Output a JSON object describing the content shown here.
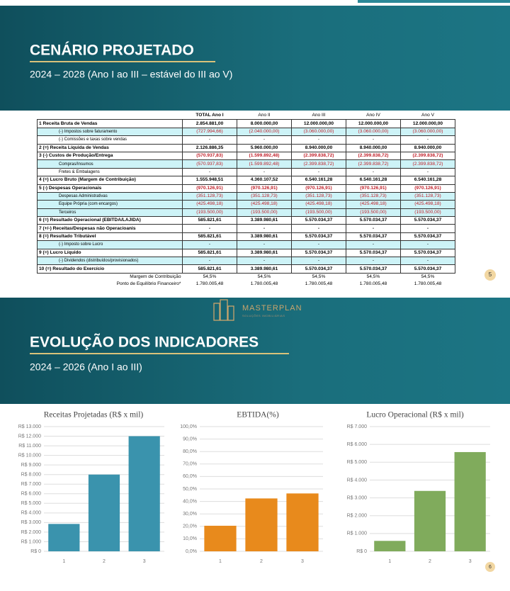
{
  "slide1": {
    "title": "CENÁRIO PROJETADO",
    "subtitle": "2024 – 2028 (Ano I ao III – estável do III ao V)",
    "page_number": "5",
    "table": {
      "columns": [
        "TOTAL Ano I",
        "Ano II",
        "Ano III",
        "Ano IV",
        "Ano V"
      ],
      "rows": [
        [
          "1 Receita Bruta de Vendas",
          "2.854.881,00",
          "8.000.000,00",
          "12.000.000,00",
          "12.000.000,00",
          "12.000.000,00"
        ],
        [
          "(-) Impostos sobre faturamento",
          "(727.994,66)",
          "(2.040.000,00)",
          "(3.060.000,00)",
          "(3.060.000,00)",
          "(3.060.000,00)"
        ],
        [
          "(-) Comissões e taxas sobre vendas",
          "-",
          "-",
          "-",
          "-",
          "-"
        ],
        [
          "2 (=) Receita Líquida de Vendas",
          "2.126.886,35",
          "5.960.000,00",
          "8.940.000,00",
          "8.940.000,00",
          "8.940.000,00"
        ],
        [
          "3 (-) Custos de Produção/Entrega",
          "(570.937,83)",
          "(1.599.892,48)",
          "(2.399.838,72)",
          "(2.399.838,72)",
          "(2.399.838,72)"
        ],
        [
          "Compras/Insumos",
          "(570.937,83)",
          "(1.599.892,48)",
          "(2.399.838,72)",
          "(2.399.838,72)",
          "(2.399.838,72)"
        ],
        [
          "Fretes & Embalagens",
          "-",
          "-",
          "-",
          "-",
          "-"
        ],
        [
          "4 (=) Lucro Bruto (Margem de Contribuição)",
          "1.555.948,51",
          "4.360.107,52",
          "6.540.161,28",
          "6.540.161,28",
          "6.540.161,28"
        ],
        [
          "5 (-) Despesas Operacionais",
          "(970.126,91)",
          "(970.126,91)",
          "(970.126,91)",
          "(970.126,91)",
          "(970.126,91)"
        ],
        [
          "Despesas Administrativas",
          "(351.128,73)",
          "(351.128,73)",
          "(351.128,73)",
          "(351.128,73)",
          "(351.128,73)"
        ],
        [
          "Equipe Própria (com encargos)",
          "(425.498,18)",
          "(425.498,18)",
          "(425.498,18)",
          "(425.498,18)",
          "(425.498,18)"
        ],
        [
          "Terceiros",
          "(193.500,00)",
          "(193.500,00)",
          "(193.500,00)",
          "(193.500,00)",
          "(193.500,00)"
        ],
        [
          "6 (=) Resultado Operacional (EBITDA/LAJIDA)",
          "585.821,61",
          "3.389.980,61",
          "5.570.034,37",
          "5.570.034,37",
          "5.570.034,37"
        ],
        [
          "7 (+/-) Receitas/Despesas não Operacioanis",
          "-",
          "-",
          "-",
          "-",
          "-"
        ],
        [
          "8 (=) Resultado Tributável",
          "585.821,61",
          "3.389.980,61",
          "5.570.034,37",
          "5.570.034,37",
          "5.570.034,37"
        ],
        [
          "(-) Imposto sobre Lucro",
          "-",
          "-",
          "-",
          "-",
          "-"
        ],
        [
          "9 (=) Lucro Líquido",
          "585.821,61",
          "3.389.980,61",
          "5.570.034,37",
          "5.570.034,37",
          "5.570.034,37"
        ],
        [
          "(-) Dividendos (distribuídos/provisionados)",
          "-",
          "-",
          "-",
          "-",
          "-"
        ],
        [
          "10 (=) Resultado do Exercício",
          "585.821,61",
          "3.389.980,61",
          "5.570.034,37",
          "5.570.034,37",
          "5.570.034,37"
        ]
      ],
      "footer_rows": [
        [
          "Margem de Contribuição",
          "54,5%",
          "54,5%",
          "54,5%",
          "54,5%",
          "54,5%"
        ],
        [
          "Ponto de Equilíbrio Financeiro*",
          "1.780.005,48",
          "1.780.005,48",
          "1.780.005,48",
          "1.780.005,48",
          "1.780.005,48"
        ]
      ]
    }
  },
  "logo": {
    "name": "MASTERPLAN",
    "tagline": "SOLUÇÕES IMOBILIÁRIAS"
  },
  "slide2": {
    "title": "EVOLUÇÃO DOS INDICADORES",
    "subtitle": "2024 – 2026 (Ano I ao III)",
    "page_number": "6"
  },
  "chart_data": [
    {
      "type": "bar",
      "title": "Receitas Projetadas (R$ x mil)",
      "categories": [
        "1",
        "2",
        "3"
      ],
      "values": [
        2854.881,
        8000,
        12000
      ],
      "color": "#3a93ad",
      "ylim": [
        0,
        13000
      ],
      "grid": true,
      "yticks": [
        {
          "value": 0,
          "label": "R$ 0"
        },
        {
          "value": 1000,
          "label": "R$ 1.000"
        },
        {
          "value": 2000,
          "label": "R$ 2.000"
        },
        {
          "value": 3000,
          "label": "R$ 3.000"
        },
        {
          "value": 4000,
          "label": "R$ 4.000"
        },
        {
          "value": 5000,
          "label": "R$ 5.000"
        },
        {
          "value": 6000,
          "label": "R$ 6.000"
        },
        {
          "value": 7000,
          "label": "R$ 7.000"
        },
        {
          "value": 8000,
          "label": "R$ 8.000"
        },
        {
          "value": 9000,
          "label": "R$ 9.000"
        },
        {
          "value": 10000,
          "label": "R$ 10.000"
        },
        {
          "value": 11000,
          "label": "R$ 11.000"
        },
        {
          "value": 12000,
          "label": "R$ 12.000"
        },
        {
          "value": 13000,
          "label": "R$ 13.000"
        }
      ]
    },
    {
      "type": "bar",
      "title": "EBTIDA(%)",
      "categories": [
        "1",
        "2",
        "3"
      ],
      "values": [
        20.5,
        42.4,
        46.4
      ],
      "color": "#e88a1c",
      "ylim": [
        0,
        100
      ],
      "grid": true,
      "yticks": [
        {
          "value": 0,
          "label": "0,0%"
        },
        {
          "value": 10,
          "label": "10,0%"
        },
        {
          "value": 20,
          "label": "20,0%"
        },
        {
          "value": 30,
          "label": "30,0%"
        },
        {
          "value": 40,
          "label": "40,0%"
        },
        {
          "value": 50,
          "label": "50,0%"
        },
        {
          "value": 60,
          "label": "60,0%"
        },
        {
          "value": 70,
          "label": "70,0%"
        },
        {
          "value": 80,
          "label": "80,0%"
        },
        {
          "value": 90,
          "label": "90,0%"
        },
        {
          "value": 100,
          "label": "100,0%"
        }
      ]
    },
    {
      "type": "bar",
      "title": "Lucro Operacional (R$ x mil)",
      "categories": [
        "1",
        "2",
        "3"
      ],
      "values": [
        585.8,
        3390,
        5570
      ],
      "color": "#80ab5c",
      "ylim": [
        0,
        7000
      ],
      "grid": true,
      "yticks": [
        {
          "value": 0,
          "label": "R$ 0"
        },
        {
          "value": 1000,
          "label": "R$ 1.000"
        },
        {
          "value": 2000,
          "label": "R$ 2.000"
        },
        {
          "value": 3000,
          "label": "R$ 3.000"
        },
        {
          "value": 4000,
          "label": "R$ 4.000"
        },
        {
          "value": 5000,
          "label": "R$ 5.000"
        },
        {
          "value": 6000,
          "label": "R$ 6.000"
        },
        {
          "value": 7000,
          "label": "R$ 7.000"
        }
      ]
    }
  ]
}
